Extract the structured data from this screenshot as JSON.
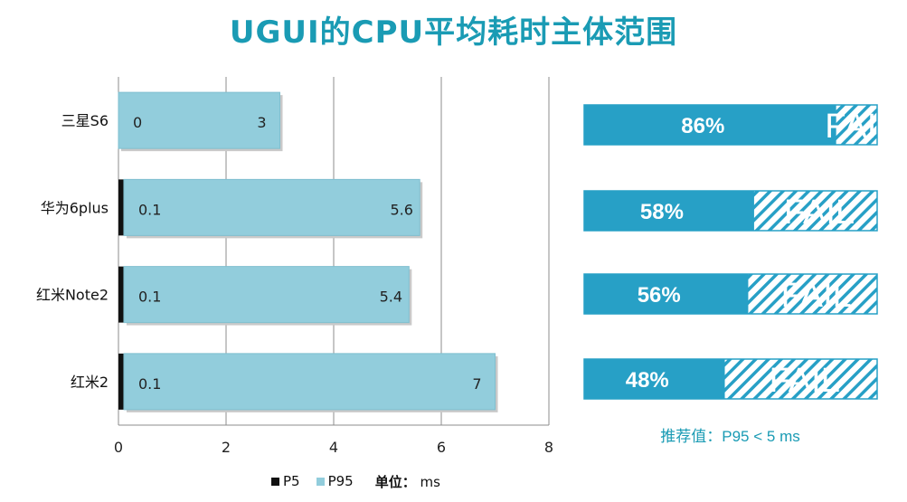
{
  "title": "UGUI的CPU平均耗时主体范围",
  "chart_data": {
    "type": "bar",
    "orientation": "horizontal",
    "categories": [
      "三星S6",
      "华为6plus",
      "红米Note2",
      "红米2"
    ],
    "series": [
      {
        "name": "P5",
        "values": [
          0,
          0.1,
          0.1,
          0.1
        ],
        "color": "#111111"
      },
      {
        "name": "P95",
        "values": [
          3,
          5.6,
          5.4,
          7
        ],
        "color": "#92cddc"
      }
    ],
    "xlim": [
      0,
      8
    ],
    "xticks": [
      0,
      2,
      4,
      6,
      8
    ],
    "grid": true,
    "legend_position": "bottom",
    "unit_label": "单位：",
    "unit": "ms"
  },
  "pass_rates": [
    {
      "percent": 86,
      "label": "86%",
      "status": "FAIL"
    },
    {
      "percent": 58,
      "label": "58%",
      "status": "FAIL"
    },
    {
      "percent": 56,
      "label": "56%",
      "status": "FAIL"
    },
    {
      "percent": 48,
      "label": "48%",
      "status": "FAIL"
    }
  ],
  "recommendation": "推荐值：P95 < 5 ms",
  "colors": {
    "accent": "#1a9bb4",
    "pass_fill": "#27a0c6",
    "hatch": "#27a0c6",
    "bar": "#92cddc",
    "bar_border": "#7fbfcf"
  }
}
